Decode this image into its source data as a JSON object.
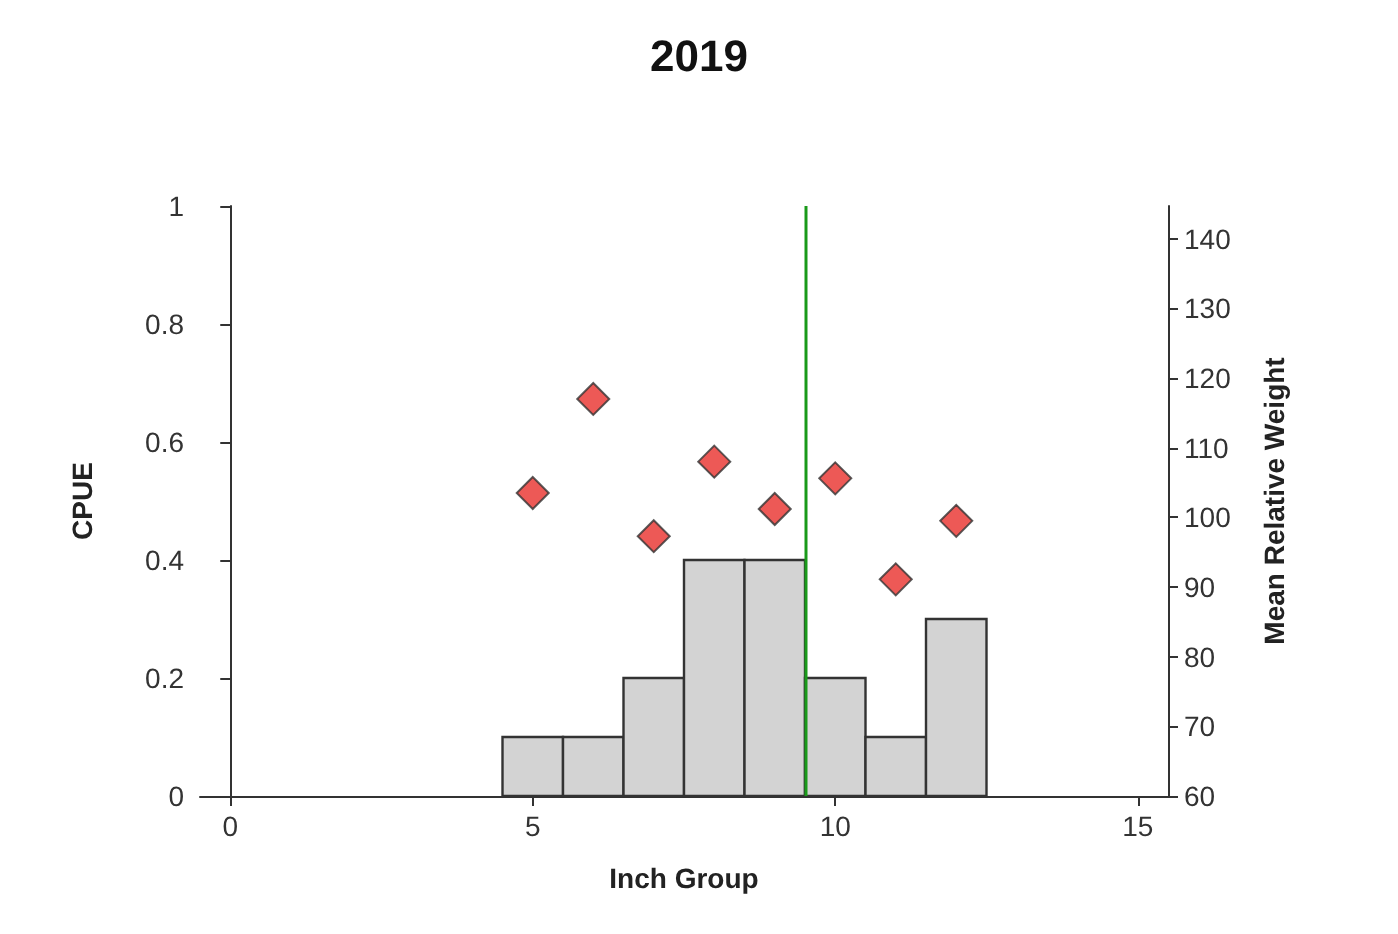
{
  "chart_data": {
    "type": "histogram",
    "title": "2019",
    "xlabel": "Inch Group",
    "ylabel": "CPUE",
    "y2label": "Mean Relative Weight",
    "bins": [
      4.5,
      5.5,
      6.5,
      7.5,
      8.5,
      9.5,
      10.5,
      11.5,
      12.5
    ],
    "values": [
      0.1,
      0.1,
      0.2,
      0.4,
      0.4,
      0.2,
      0.1,
      0.3
    ],
    "color": "#d3d3d3",
    "series": [
      {
        "type": "scatter",
        "axis": "y2",
        "color": "#e8302c",
        "marker": "diamond",
        "x": [
          5,
          6,
          7,
          8,
          9,
          10,
          11,
          12
        ],
        "values": [
          103.5,
          117,
          97.3,
          108,
          101.2,
          105.6,
          91.1,
          99.5
        ]
      }
    ],
    "xlim": [
      -0.5,
      15.5
    ],
    "xticks": [
      0,
      5,
      10,
      15
    ],
    "ylim": [
      0,
      1
    ],
    "yticks": [
      0,
      0.2,
      0.4,
      0.6,
      0.8,
      1
    ],
    "y2lim": [
      60,
      144.7
    ],
    "y2ticks": [
      60,
      70,
      80,
      90,
      100,
      110,
      120,
      130,
      140
    ],
    "ref_lines": [
      {
        "axis": "x",
        "value": 9.5,
        "color": "#1a9a1a"
      }
    ],
    "grid": false
  }
}
